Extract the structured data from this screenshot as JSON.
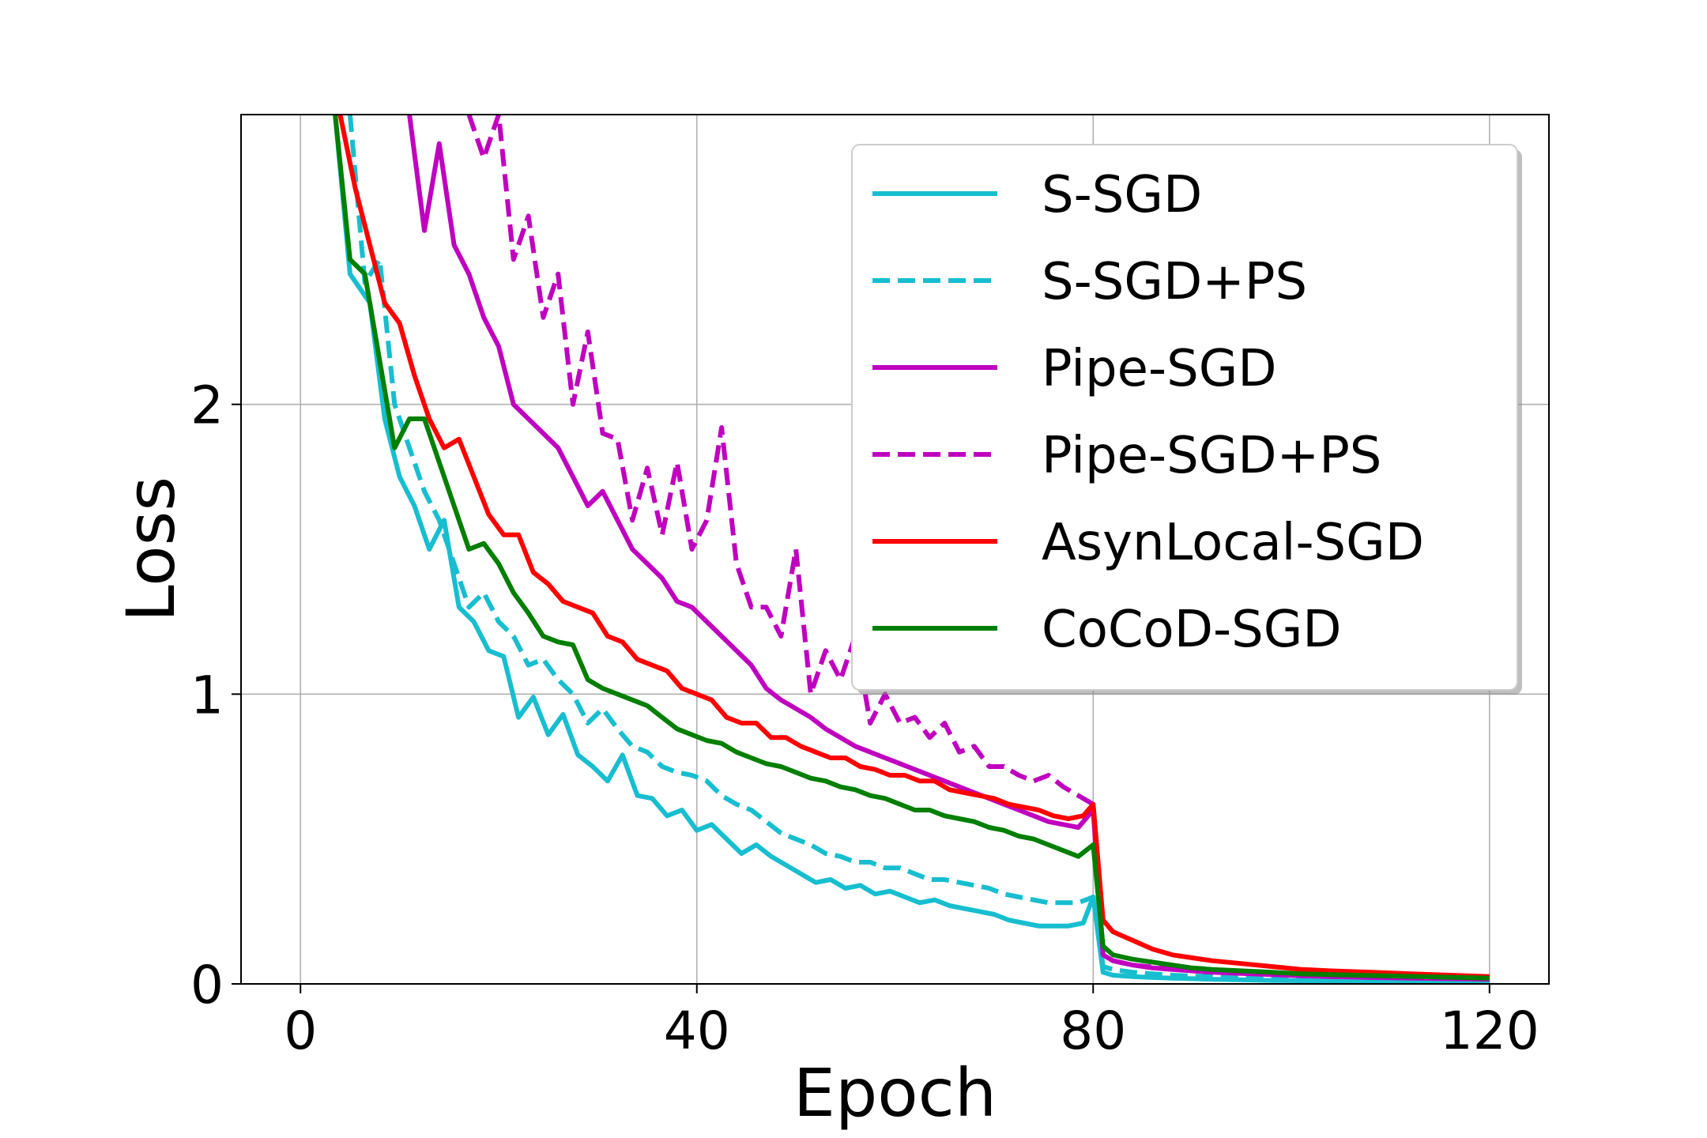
{
  "chart_data": {
    "type": "line",
    "title": "",
    "xlabel": "Epoch",
    "ylabel": "Loss",
    "xlim": [
      -6,
      126
    ],
    "ylim": [
      0,
      3.0
    ],
    "xticks": [
      0,
      40,
      80,
      120
    ],
    "yticks": [
      0,
      1,
      2
    ],
    "grid": true,
    "legend_position": "top-right",
    "series": [
      {
        "name": "S-SGD",
        "color": "#17becf",
        "dash": "solid",
        "x": [
          3.5,
          5,
          7,
          8.5,
          10,
          11.5,
          13,
          14.5,
          16,
          17.5,
          19,
          20.5,
          22,
          23.5,
          25,
          26.5,
          28,
          29.5,
          31,
          32.5,
          34,
          35.5,
          37,
          38.5,
          40,
          41.5,
          43,
          44.5,
          46,
          47.5,
          49,
          50.5,
          52,
          53.5,
          55,
          56.5,
          58,
          59.5,
          61,
          62.5,
          64,
          65.5,
          67,
          68.5,
          70,
          71.5,
          73,
          74.5,
          76,
          77.5,
          79,
          80,
          81,
          82,
          84,
          86,
          88,
          90,
          92,
          95,
          98,
          101,
          104,
          108,
          112,
          116,
          120
        ],
        "y": [
          3.0,
          2.45,
          2.35,
          1.95,
          1.75,
          1.65,
          1.5,
          1.6,
          1.3,
          1.25,
          1.15,
          1.13,
          0.92,
          0.99,
          0.86,
          0.93,
          0.79,
          0.75,
          0.7,
          0.79,
          0.65,
          0.64,
          0.58,
          0.6,
          0.53,
          0.55,
          0.5,
          0.45,
          0.48,
          0.44,
          0.41,
          0.38,
          0.35,
          0.36,
          0.33,
          0.34,
          0.31,
          0.32,
          0.3,
          0.28,
          0.29,
          0.27,
          0.26,
          0.25,
          0.24,
          0.22,
          0.21,
          0.2,
          0.2,
          0.2,
          0.21,
          0.3,
          0.04,
          0.03,
          0.025,
          0.022,
          0.02,
          0.018,
          0.016,
          0.014,
          0.012,
          0.011,
          0.01,
          0.009,
          0.008,
          0.007,
          0.006
        ]
      },
      {
        "name": "S-SGD+PS",
        "color": "#17becf",
        "dash": "dashed",
        "x": [
          5,
          6.5,
          8,
          9.5,
          11,
          12.5,
          14,
          15.5,
          17,
          18.5,
          20,
          21.5,
          23,
          24.5,
          26,
          27.5,
          29,
          30.5,
          32,
          33.5,
          35,
          36.5,
          38,
          39.5,
          41,
          42.5,
          44,
          45.5,
          47,
          48.5,
          50,
          51.5,
          53,
          54.5,
          56,
          57.5,
          59,
          60.5,
          62,
          63.5,
          65,
          66.5,
          68,
          69.5,
          71,
          72.5,
          74,
          75.5,
          77,
          78.5,
          80,
          81,
          82,
          84,
          86,
          88,
          90,
          92,
          95,
          98,
          101,
          104,
          108,
          112,
          116,
          120
        ],
        "y": [
          3.0,
          2.42,
          2.5,
          2.0,
          1.85,
          1.7,
          1.6,
          1.45,
          1.3,
          1.35,
          1.25,
          1.2,
          1.1,
          1.12,
          1.05,
          1.0,
          0.9,
          0.95,
          0.88,
          0.82,
          0.8,
          0.75,
          0.73,
          0.72,
          0.7,
          0.65,
          0.62,
          0.6,
          0.56,
          0.52,
          0.5,
          0.48,
          0.45,
          0.44,
          0.42,
          0.42,
          0.4,
          0.4,
          0.38,
          0.36,
          0.36,
          0.35,
          0.34,
          0.33,
          0.31,
          0.3,
          0.29,
          0.28,
          0.28,
          0.28,
          0.3,
          0.06,
          0.05,
          0.04,
          0.035,
          0.03,
          0.027,
          0.025,
          0.022,
          0.02,
          0.018,
          0.017,
          0.015,
          0.014,
          0.013,
          0.012
        ]
      },
      {
        "name": "Pipe-SGD",
        "color": "#bf00bf",
        "dash": "solid",
        "x": [
          11,
          12.5,
          14,
          15.5,
          17,
          18.5,
          20,
          21.5,
          23,
          24.5,
          26,
          27.5,
          29,
          30.5,
          32,
          33.5,
          35,
          36.5,
          38,
          39.5,
          41,
          42.5,
          44,
          45.5,
          47,
          48.5,
          50,
          51.5,
          53,
          54.5,
          56,
          57.5,
          59,
          60.5,
          62,
          63.5,
          65,
          66.5,
          68,
          69.5,
          71,
          72.5,
          74,
          75.5,
          77,
          78.5,
          80,
          81,
          82,
          84,
          86,
          88,
          90,
          92,
          95,
          98,
          101,
          104,
          108,
          112,
          116,
          120
        ],
        "y": [
          3.0,
          2.6,
          2.9,
          2.55,
          2.45,
          2.3,
          2.2,
          2.0,
          1.95,
          1.9,
          1.85,
          1.75,
          1.65,
          1.7,
          1.6,
          1.5,
          1.45,
          1.4,
          1.32,
          1.3,
          1.25,
          1.2,
          1.15,
          1.1,
          1.02,
          0.98,
          0.95,
          0.92,
          0.88,
          0.85,
          0.82,
          0.8,
          0.78,
          0.76,
          0.74,
          0.72,
          0.7,
          0.68,
          0.66,
          0.64,
          0.62,
          0.6,
          0.58,
          0.56,
          0.55,
          0.54,
          0.6,
          0.1,
          0.08,
          0.065,
          0.055,
          0.05,
          0.045,
          0.04,
          0.036,
          0.032,
          0.028,
          0.025,
          0.022,
          0.02,
          0.018,
          0.016
        ]
      },
      {
        "name": "Pipe-SGD+PS",
        "color": "#bf00bf",
        "dash": "dashed",
        "x": [
          17,
          18.5,
          20,
          21.5,
          23,
          24.5,
          26,
          27.5,
          29,
          30.5,
          32,
          33.5,
          35,
          36.5,
          38,
          39.5,
          41,
          42.5,
          44,
          45.5,
          47,
          48.5,
          50,
          51.5,
          53,
          54.5,
          56,
          57.5,
          59,
          60.5,
          62,
          63.5,
          65,
          66.5,
          68,
          69.5,
          71,
          72.5,
          74,
          75.5,
          77,
          78.5,
          80,
          81,
          82,
          84,
          86,
          88,
          90,
          92,
          95,
          98,
          101,
          104,
          108,
          112,
          116,
          120
        ],
        "y": [
          3.0,
          2.85,
          3.0,
          2.5,
          2.65,
          2.3,
          2.45,
          2.0,
          2.25,
          1.9,
          1.88,
          1.6,
          1.78,
          1.55,
          1.8,
          1.5,
          1.6,
          1.92,
          1.45,
          1.3,
          1.3,
          1.2,
          1.5,
          1.0,
          1.15,
          1.05,
          1.2,
          0.9,
          1.0,
          0.9,
          0.92,
          0.85,
          0.9,
          0.8,
          0.82,
          0.75,
          0.75,
          0.72,
          0.7,
          0.72,
          0.68,
          0.65,
          0.62,
          0.1,
          0.08,
          0.065,
          0.058,
          0.052,
          0.048,
          0.044,
          0.04,
          0.037,
          0.034,
          0.031,
          0.028,
          0.026,
          0.024,
          0.022
        ]
      },
      {
        "name": "AsynLocal-SGD",
        "color": "#ff0000",
        "dash": "solid",
        "x": [
          4,
          5.5,
          7,
          8.5,
          10,
          11.5,
          13,
          14.5,
          16,
          17.5,
          19,
          20.5,
          22,
          23.5,
          25,
          26.5,
          28,
          29.5,
          31,
          32.5,
          34,
          35.5,
          37,
          38.5,
          40,
          41.5,
          43,
          44.5,
          46,
          47.5,
          49,
          50.5,
          52,
          53.5,
          55,
          56.5,
          58,
          59.5,
          61,
          62.5,
          64,
          65.5,
          67,
          68.5,
          70,
          71.5,
          73,
          74.5,
          76,
          77.5,
          79,
          80,
          81,
          82,
          84,
          86,
          88,
          90,
          92,
          95,
          98,
          101,
          104,
          108,
          112,
          116,
          120
        ],
        "y": [
          3.0,
          2.75,
          2.55,
          2.35,
          2.28,
          2.1,
          1.95,
          1.85,
          1.88,
          1.75,
          1.62,
          1.55,
          1.55,
          1.42,
          1.38,
          1.32,
          1.3,
          1.28,
          1.2,
          1.18,
          1.12,
          1.1,
          1.08,
          1.02,
          1.0,
          0.98,
          0.92,
          0.9,
          0.9,
          0.85,
          0.85,
          0.82,
          0.8,
          0.78,
          0.78,
          0.75,
          0.74,
          0.72,
          0.72,
          0.7,
          0.7,
          0.67,
          0.66,
          0.65,
          0.64,
          0.62,
          0.61,
          0.6,
          0.58,
          0.57,
          0.58,
          0.62,
          0.22,
          0.18,
          0.15,
          0.12,
          0.1,
          0.09,
          0.08,
          0.07,
          0.06,
          0.05,
          0.045,
          0.04,
          0.035,
          0.03,
          0.025
        ]
      },
      {
        "name": "CoCoD-SGD",
        "color": "#007f00",
        "dash": "solid",
        "x": [
          3.5,
          5,
          6.5,
          8,
          9.5,
          11,
          12.5,
          14,
          15.5,
          17,
          18.5,
          20,
          21.5,
          23,
          24.5,
          26,
          27.5,
          29,
          30.5,
          32,
          33.5,
          35,
          36.5,
          38,
          39.5,
          41,
          42.5,
          44,
          45.5,
          47,
          48.5,
          50,
          51.5,
          53,
          54.5,
          56,
          57.5,
          59,
          60.5,
          62,
          63.5,
          65,
          66.5,
          68,
          69.5,
          71,
          72.5,
          74,
          75.5,
          77,
          78.5,
          80,
          81,
          82,
          84,
          86,
          88,
          90,
          92,
          95,
          98,
          101,
          104,
          108,
          112,
          116,
          120
        ],
        "y": [
          3.0,
          2.5,
          2.45,
          2.15,
          1.85,
          1.95,
          1.95,
          1.8,
          1.65,
          1.5,
          1.52,
          1.45,
          1.35,
          1.28,
          1.2,
          1.18,
          1.17,
          1.05,
          1.02,
          1.0,
          0.98,
          0.96,
          0.92,
          0.88,
          0.86,
          0.84,
          0.83,
          0.8,
          0.78,
          0.76,
          0.75,
          0.73,
          0.71,
          0.7,
          0.68,
          0.67,
          0.65,
          0.64,
          0.62,
          0.6,
          0.6,
          0.58,
          0.57,
          0.56,
          0.54,
          0.53,
          0.51,
          0.5,
          0.48,
          0.46,
          0.44,
          0.48,
          0.13,
          0.1,
          0.085,
          0.075,
          0.065,
          0.055,
          0.05,
          0.045,
          0.04,
          0.035,
          0.032,
          0.029,
          0.026,
          0.023,
          0.02
        ]
      }
    ]
  }
}
